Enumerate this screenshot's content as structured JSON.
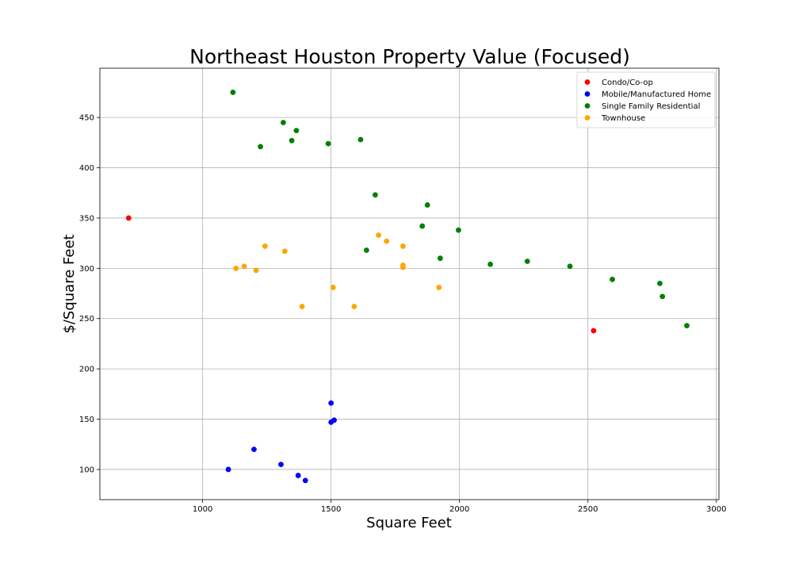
{
  "chart_data": {
    "type": "scatter",
    "title": "Northeast Houston Property Value (Focused)",
    "xlabel": "Square Feet",
    "ylabel": "$/Square Feet",
    "xlim": [
      600,
      3010
    ],
    "ylim": [
      70,
      499
    ],
    "xticks": [
      1000,
      1500,
      2000,
      2500,
      3000
    ],
    "yticks": [
      100,
      150,
      200,
      250,
      300,
      350,
      400,
      450
    ],
    "grid": true,
    "legend_position": "top-right",
    "series": [
      {
        "name": "Condo/Co-op",
        "color": "#ff0000",
        "points": [
          [
            712,
            350
          ],
          [
            2522,
            238
          ]
        ]
      },
      {
        "name": "Mobile/Manufactured Home",
        "color": "#0000ff",
        "points": [
          [
            1100,
            100
          ],
          [
            1200,
            120
          ],
          [
            1305,
            105
          ],
          [
            1372,
            94
          ],
          [
            1400,
            89
          ],
          [
            1500,
            147
          ],
          [
            1500,
            166
          ],
          [
            1512,
            149
          ]
        ]
      },
      {
        "name": "Single Family Residential",
        "color": "#008000",
        "points": [
          [
            1118,
            475
          ],
          [
            1225,
            421
          ],
          [
            1314,
            445
          ],
          [
            1347,
            427
          ],
          [
            1365,
            437
          ],
          [
            1489,
            424
          ],
          [
            1615,
            428
          ],
          [
            1638,
            318
          ],
          [
            1672,
            373
          ],
          [
            1855,
            342
          ],
          [
            1875,
            363
          ],
          [
            1925,
            310
          ],
          [
            1996,
            338
          ],
          [
            2120,
            304
          ],
          [
            2264,
            307
          ],
          [
            2430,
            302
          ],
          [
            2595,
            289
          ],
          [
            2780,
            285
          ],
          [
            2790,
            272
          ],
          [
            2885,
            243
          ]
        ]
      },
      {
        "name": "Townhouse",
        "color": "#ffa500",
        "points": [
          [
            1130,
            300
          ],
          [
            1162,
            302
          ],
          [
            1208,
            298
          ],
          [
            1243,
            322
          ],
          [
            1320,
            317
          ],
          [
            1387,
            262
          ],
          [
            1508,
            281
          ],
          [
            1590,
            262
          ],
          [
            1685,
            333
          ],
          [
            1716,
            327
          ],
          [
            1780,
            322
          ],
          [
            1780,
            303
          ],
          [
            1780,
            301
          ],
          [
            1920,
            281
          ]
        ]
      }
    ]
  }
}
